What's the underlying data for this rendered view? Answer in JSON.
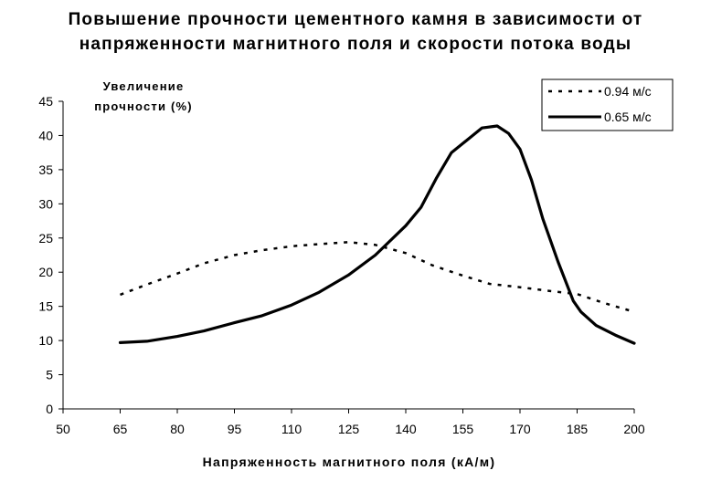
{
  "chart_data": {
    "type": "line",
    "title_line1": "Повышение прочности цементного камня в зависимости от",
    "title_line2": "напряженности магнитного поля и скорости потока воды",
    "ylabel_line1": "Увеличение",
    "ylabel_line2": "прочности (%)",
    "xlabel": "Напряженность магнитного поля (кА/м)",
    "xlim": [
      50,
      200
    ],
    "ylim": [
      0,
      45
    ],
    "xticks": [
      "50",
      "65",
      "80",
      "95",
      "110",
      "125",
      "140",
      "155",
      "170",
      "185",
      "200"
    ],
    "yticks": [
      "0",
      "5",
      "10",
      "15",
      "20",
      "25",
      "30",
      "35",
      "40",
      "45"
    ],
    "grid": false,
    "legend_position": "top-right",
    "series": [
      {
        "name": "0.94 м/с",
        "style": "dashed",
        "color": "#000000",
        "x": [
          65,
          72,
          80,
          87,
          95,
          102,
          110,
          117,
          125,
          132,
          140,
          147,
          155,
          162,
          170,
          177,
          185,
          192,
          200
        ],
        "y": [
          16.7,
          18.2,
          19.8,
          21.3,
          22.5,
          23.2,
          23.8,
          24.1,
          24.4,
          24.0,
          22.8,
          21.0,
          19.5,
          18.3,
          17.8,
          17.3,
          16.8,
          15.5,
          14.2
        ]
      },
      {
        "name": "0.65 м/с",
        "style": "solid",
        "color": "#000000",
        "x": [
          65,
          72,
          80,
          87,
          95,
          102,
          110,
          117,
          125,
          132,
          140,
          144,
          148,
          152,
          156,
          160,
          164,
          167,
          170,
          173,
          176,
          180,
          184,
          186,
          190,
          195,
          200
        ],
        "y": [
          9.7,
          9.9,
          10.6,
          11.4,
          12.6,
          13.6,
          15.2,
          17.0,
          19.6,
          22.5,
          26.8,
          29.5,
          33.7,
          37.5,
          39.3,
          41.1,
          41.4,
          40.3,
          38.0,
          33.5,
          27.8,
          21.5,
          15.8,
          14.2,
          12.2,
          10.8,
          9.6
        ]
      }
    ]
  }
}
